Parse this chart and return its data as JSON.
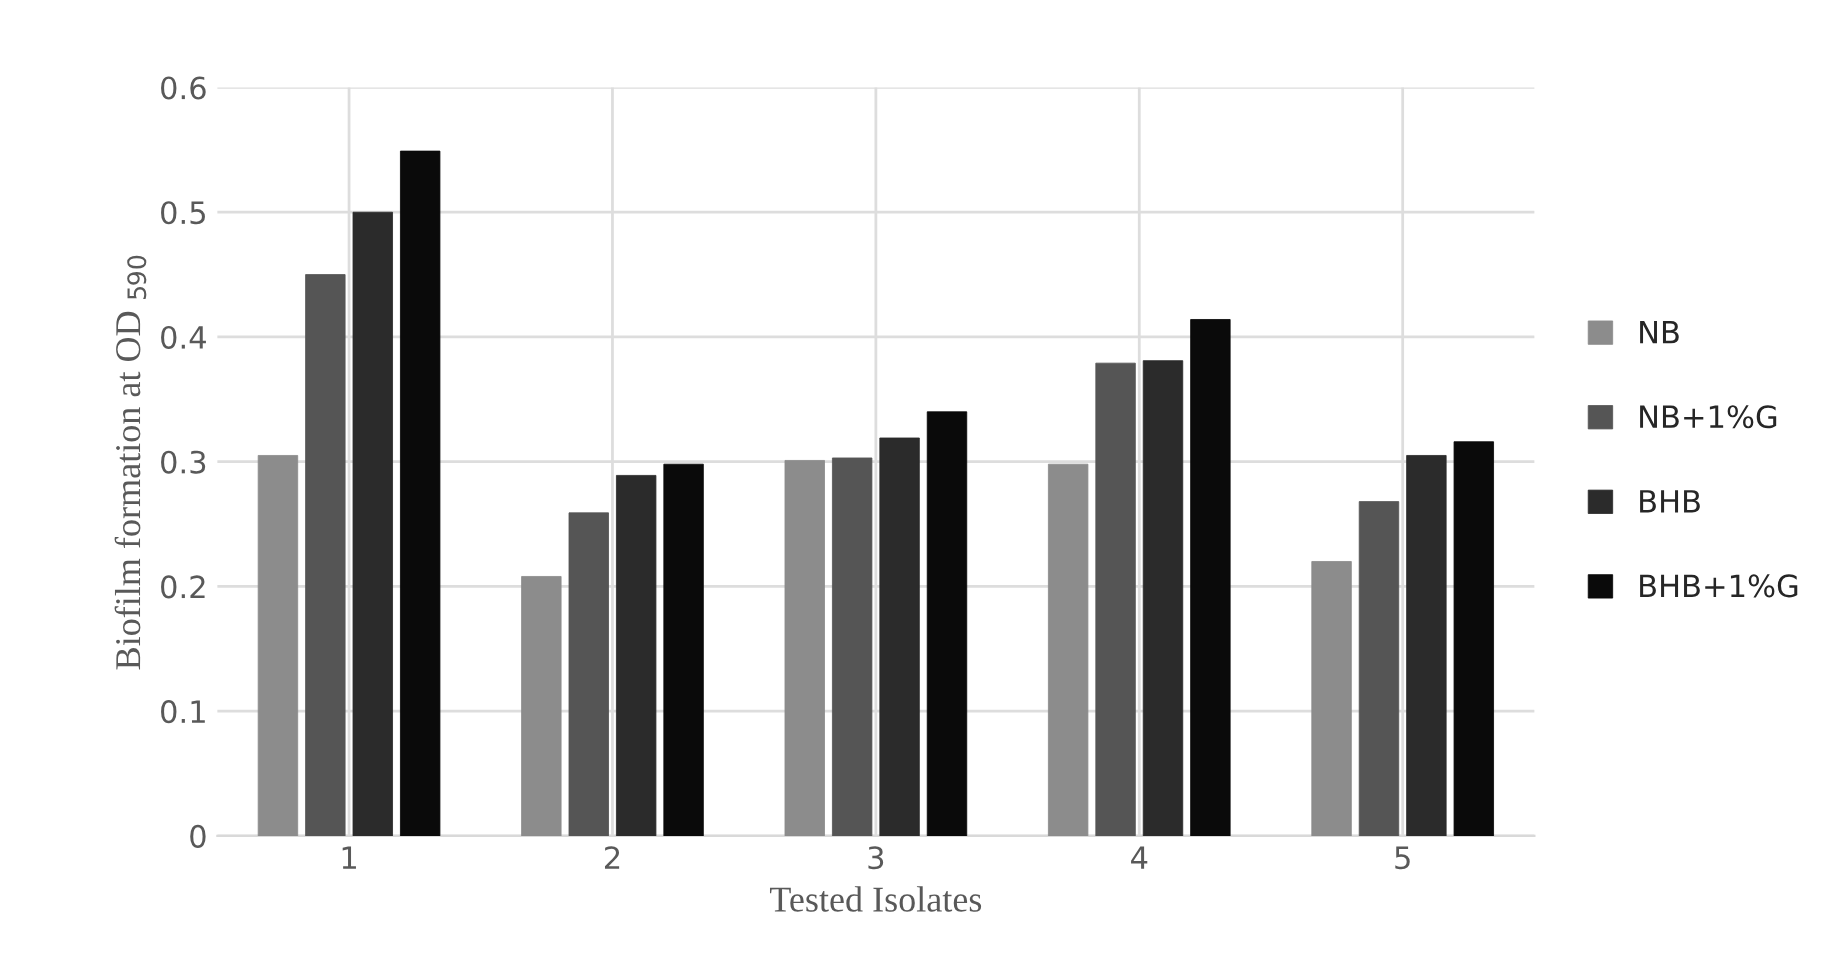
{
  "chart_data": {
    "type": "bar",
    "xlabel": "Tested Isolates",
    "ylabel": "Biofilm formation at OD $_{590}$",
    "categories": [
      "1",
      "2",
      "3",
      "4",
      "5"
    ],
    "series": [
      {
        "name": "NB",
        "color": "#8c8c8c",
        "values": [
          0.305,
          0.208,
          0.301,
          0.298,
          0.22
        ]
      },
      {
        "name": "NB+1%G",
        "color": "#555555",
        "values": [
          0.45,
          0.259,
          0.303,
          0.379,
          0.268
        ]
      },
      {
        "name": "BHB",
        "color": "#2b2b2b",
        "values": [
          0.5,
          0.289,
          0.319,
          0.381,
          0.305
        ]
      },
      {
        "name": "BHB+1%G",
        "color": "#0a0a0a",
        "values": [
          0.549,
          0.298,
          0.34,
          0.414,
          0.316
        ]
      }
    ],
    "ylim": [
      0,
      0.6
    ],
    "yticks": [
      0,
      0.1,
      0.2,
      0.3,
      0.4,
      0.5,
      0.6
    ],
    "grid": true,
    "legend": "right"
  }
}
